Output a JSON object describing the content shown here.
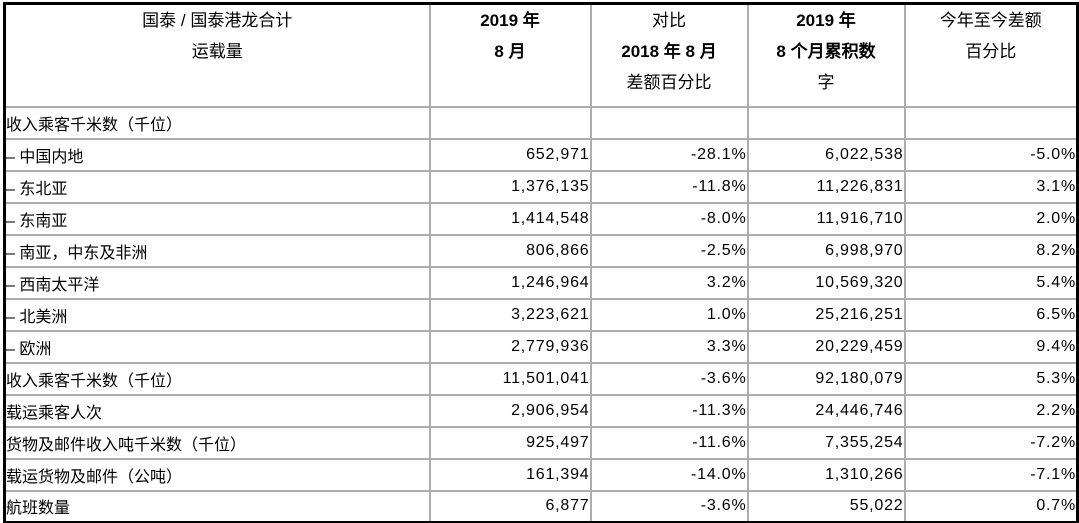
{
  "table": {
    "header": {
      "columns": [
        {
          "lines": [
            "国泰 / 国泰港龙合计",
            "运载量"
          ]
        },
        {
          "lines": [
            "2019 年",
            "8 月"
          ]
        },
        {
          "lines": [
            "对比",
            "2018 年 8 月",
            "差额百分比"
          ]
        },
        {
          "lines": [
            "2019 年",
            "8 个月累积数",
            "字"
          ]
        },
        {
          "lines": [
            "今年至今差额",
            "百分比"
          ]
        }
      ]
    },
    "rows": [
      {
        "label": "收入乘客千米数（千位）",
        "aug2019": "",
        "vs2018": "",
        "cum2019": "",
        "ytd": ""
      },
      {
        "label": "– 中国内地",
        "aug2019": "652,971",
        "vs2018": "-28.1%",
        "cum2019": "6,022,538",
        "ytd": "-5.0%"
      },
      {
        "label": "– 东北亚",
        "aug2019": "1,376,135",
        "vs2018": "-11.8%",
        "cum2019": "11,226,831",
        "ytd": "3.1%"
      },
      {
        "label": "– 东南亚",
        "aug2019": "1,414,548",
        "vs2018": "-8.0%",
        "cum2019": "11,916,710",
        "ytd": "2.0%"
      },
      {
        "label": "– 南亚，中东及非洲",
        "aug2019": "806,866",
        "vs2018": "-2.5%",
        "cum2019": "6,998,970",
        "ytd": "8.2%"
      },
      {
        "label": "– 西南太平洋",
        "aug2019": "1,246,964",
        "vs2018": "3.2%",
        "cum2019": "10,569,320",
        "ytd": "5.4%"
      },
      {
        "label": "– 北美洲",
        "aug2019": "3,223,621",
        "vs2018": "1.0%",
        "cum2019": "25,216,251",
        "ytd": "6.5%"
      },
      {
        "label": "– 欧洲",
        "aug2019": "2,779,936",
        "vs2018": "3.3%",
        "cum2019": "20,229,459",
        "ytd": "9.4%"
      },
      {
        "label": "收入乘客千米数（千位）",
        "aug2019": "11,501,041",
        "vs2018": "-3.6%",
        "cum2019": "92,180,079",
        "ytd": "5.3%"
      },
      {
        "label": "载运乘客人次",
        "aug2019": "2,906,954",
        "vs2018": "-11.3%",
        "cum2019": "24,446,746",
        "ytd": "2.2%"
      },
      {
        "label": "货物及邮件收入吨千米数（千位）",
        "aug2019": "925,497",
        "vs2018": "-11.6%",
        "cum2019": "7,355,254",
        "ytd": "-7.2%"
      },
      {
        "label": "载运货物及邮件（公吨）",
        "aug2019": "161,394",
        "vs2018": "-14.0%",
        "cum2019": "1,310,266",
        "ytd": "-7.1%"
      },
      {
        "label": "航班数量",
        "aug2019": "6,877",
        "vs2018": "-3.6%",
        "cum2019": "55,022",
        "ytd": "0.7%"
      }
    ]
  }
}
